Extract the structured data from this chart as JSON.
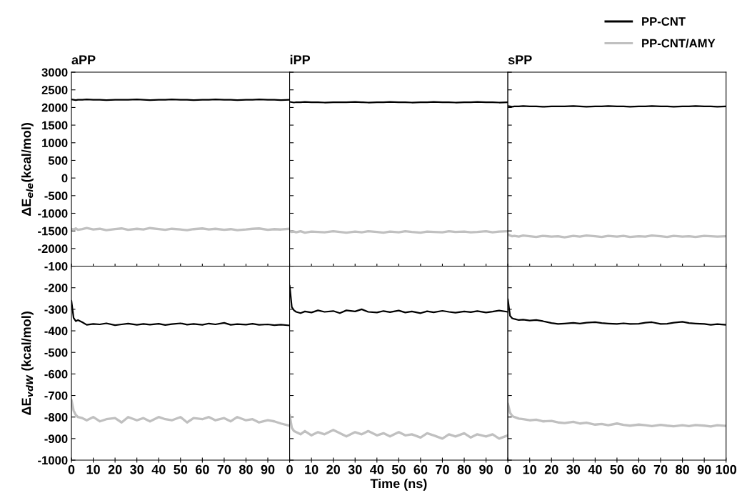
{
  "chart_data": [
    {
      "type": "line",
      "title": "aPP",
      "ylabel": "ΔE$_{ele}$(kcal/mol)",
      "tick_labels": "y",
      "xlim": [
        0,
        100
      ],
      "xticks": [
        0,
        10,
        20,
        30,
        40,
        50,
        60,
        70,
        80,
        90
      ],
      "ylim": [
        -2500,
        3000
      ],
      "yticks": [
        -2000,
        -1500,
        -1000,
        -500,
        0,
        500,
        1000,
        1500,
        2000,
        2500,
        3000
      ],
      "x": [
        0,
        1,
        2,
        3,
        5,
        7,
        10,
        13,
        16,
        20,
        23,
        26,
        30,
        33,
        36,
        40,
        43,
        46,
        50,
        53,
        56,
        60,
        63,
        66,
        70,
        73,
        76,
        80,
        83,
        86,
        90,
        93,
        96,
        100
      ],
      "series": [
        {
          "color": "#000000",
          "values": [
            2230,
            2220,
            2210,
            2220,
            2220,
            2230,
            2220,
            2220,
            2210,
            2220,
            2220,
            2220,
            2230,
            2220,
            2210,
            2220,
            2220,
            2230,
            2220,
            2220,
            2210,
            2220,
            2220,
            2230,
            2220,
            2220,
            2210,
            2220,
            2220,
            2230,
            2220,
            2220,
            2210,
            2220
          ]
        },
        {
          "color": "#c0c0c0",
          "values": [
            -1440,
            -1460,
            -1430,
            -1470,
            -1450,
            -1420,
            -1460,
            -1440,
            -1480,
            -1450,
            -1430,
            -1470,
            -1440,
            -1460,
            -1420,
            -1450,
            -1470,
            -1440,
            -1460,
            -1480,
            -1450,
            -1430,
            -1460,
            -1440,
            -1470,
            -1450,
            -1480,
            -1460,
            -1440,
            -1430,
            -1470,
            -1450,
            -1460,
            -1440
          ]
        }
      ]
    },
    {
      "type": "line",
      "title": "iPP",
      "tick_labels": false,
      "xlim": [
        0,
        100
      ],
      "xticks": [
        0,
        10,
        20,
        30,
        40,
        50,
        60,
        70,
        80,
        90
      ],
      "ylim": [
        -2500,
        3000
      ],
      "yticks": [
        -2000,
        -1500,
        -1000,
        -500,
        0,
        500,
        1000,
        1500,
        2000,
        2500,
        3000
      ],
      "x": [
        0,
        1,
        2,
        3,
        5,
        7,
        10,
        13,
        16,
        20,
        23,
        26,
        30,
        33,
        36,
        40,
        43,
        46,
        50,
        53,
        56,
        60,
        63,
        66,
        70,
        73,
        76,
        80,
        83,
        86,
        90,
        93,
        96,
        100
      ],
      "series": [
        {
          "color": "#000000",
          "values": [
            2160,
            2150,
            2140,
            2150,
            2150,
            2160,
            2150,
            2150,
            2140,
            2150,
            2150,
            2150,
            2160,
            2150,
            2140,
            2150,
            2150,
            2160,
            2150,
            2150,
            2140,
            2150,
            2150,
            2160,
            2150,
            2150,
            2140,
            2150,
            2150,
            2160,
            2150,
            2150,
            2140,
            2150
          ]
        },
        {
          "color": "#c0c0c0",
          "values": [
            -1500,
            -1530,
            -1520,
            -1540,
            -1510,
            -1550,
            -1520,
            -1530,
            -1540,
            -1510,
            -1530,
            -1550,
            -1520,
            -1540,
            -1510,
            -1530,
            -1550,
            -1520,
            -1540,
            -1510,
            -1530,
            -1550,
            -1520,
            -1530,
            -1540,
            -1510,
            -1530,
            -1520,
            -1540,
            -1530,
            -1510,
            -1540,
            -1520,
            -1510
          ]
        }
      ]
    },
    {
      "type": "line",
      "title": "sPP",
      "tick_labels": false,
      "legend": "top right",
      "xlim": [
        0,
        100
      ],
      "xticks": [
        0,
        10,
        20,
        30,
        40,
        50,
        60,
        70,
        80,
        90,
        100
      ],
      "ylim": [
        -2500,
        3000
      ],
      "yticks": [
        -2000,
        -1500,
        -1000,
        -500,
        0,
        500,
        1000,
        1500,
        2000,
        2500,
        3000
      ],
      "x": [
        0,
        1,
        2,
        3,
        5,
        7,
        10,
        13,
        16,
        20,
        23,
        26,
        30,
        33,
        36,
        40,
        43,
        46,
        50,
        53,
        56,
        60,
        63,
        66,
        70,
        73,
        76,
        80,
        83,
        86,
        90,
        93,
        96,
        100
      ],
      "series": [
        {
          "name": "PP-CNT",
          "color": "#000000",
          "values": [
            2040,
            2030,
            2020,
            2030,
            2030,
            2040,
            2030,
            2030,
            2020,
            2030,
            2030,
            2030,
            2040,
            2030,
            2020,
            2030,
            2030,
            2040,
            2030,
            2030,
            2020,
            2030,
            2030,
            2040,
            2030,
            2030,
            2020,
            2030,
            2030,
            2040,
            2030,
            2030,
            2020,
            2030
          ]
        },
        {
          "name": "PP-CNT/AMY",
          "color": "#c0c0c0",
          "values": [
            -1600,
            -1630,
            -1650,
            -1640,
            -1660,
            -1630,
            -1650,
            -1670,
            -1640,
            -1660,
            -1650,
            -1680,
            -1640,
            -1660,
            -1630,
            -1650,
            -1670,
            -1640,
            -1660,
            -1640,
            -1670,
            -1650,
            -1660,
            -1630,
            -1650,
            -1670,
            -1640,
            -1660,
            -1650,
            -1670,
            -1640,
            -1650,
            -1660,
            -1650
          ]
        }
      ]
    },
    {
      "type": "line",
      "ylabel": "ΔE$_{vdW}$ (kcal/mol)",
      "xlim": [
        0,
        100
      ],
      "xticks": [
        0,
        10,
        20,
        30,
        40,
        50,
        60,
        70,
        80,
        90
      ],
      "ylim": [
        -1000,
        -100
      ],
      "yticks": [
        -1000,
        -900,
        -800,
        -700,
        -600,
        -500,
        -400,
        -300,
        -200,
        -100
      ],
      "x": [
        0,
        1,
        2,
        3,
        5,
        7,
        10,
        13,
        16,
        20,
        23,
        26,
        30,
        33,
        36,
        40,
        43,
        46,
        50,
        53,
        56,
        60,
        63,
        66,
        70,
        73,
        76,
        80,
        83,
        86,
        90,
        93,
        96,
        100
      ],
      "series": [
        {
          "color": "#000000",
          "values": [
            -260,
            -340,
            -355,
            -350,
            -360,
            -372,
            -368,
            -370,
            -365,
            -374,
            -370,
            -366,
            -372,
            -368,
            -371,
            -367,
            -373,
            -369,
            -365,
            -371,
            -368,
            -372,
            -366,
            -370,
            -363,
            -372,
            -369,
            -371,
            -367,
            -372,
            -370,
            -374,
            -371,
            -375
          ]
        },
        {
          "color": "#c0c0c0",
          "values": [
            -720,
            -770,
            -790,
            -800,
            -805,
            -815,
            -800,
            -820,
            -810,
            -805,
            -825,
            -800,
            -815,
            -805,
            -820,
            -800,
            -810,
            -815,
            -800,
            -825,
            -805,
            -810,
            -800,
            -815,
            -805,
            -820,
            -800,
            -815,
            -810,
            -825,
            -815,
            -820,
            -830,
            -840
          ]
        }
      ]
    },
    {
      "type": "line",
      "xlabel": "Time (ns)",
      "tick_labels": "x",
      "xlim": [
        0,
        100
      ],
      "xticks": [
        0,
        10,
        20,
        30,
        40,
        50,
        60,
        70,
        80,
        90
      ],
      "ylim": [
        -1000,
        -100
      ],
      "yticks": [
        -1000,
        -900,
        -800,
        -700,
        -600,
        -500,
        -400,
        -300,
        -200,
        -100
      ],
      "x": [
        0,
        1,
        2,
        3,
        5,
        7,
        10,
        13,
        16,
        20,
        23,
        26,
        30,
        33,
        36,
        40,
        43,
        46,
        50,
        53,
        56,
        60,
        63,
        66,
        70,
        73,
        76,
        80,
        83,
        86,
        90,
        93,
        96,
        100
      ],
      "series": [
        {
          "color": "#000000",
          "values": [
            -190,
            -290,
            -305,
            -312,
            -318,
            -310,
            -315,
            -305,
            -312,
            -308,
            -318,
            -305,
            -310,
            -300,
            -312,
            -315,
            -308,
            -313,
            -306,
            -315,
            -310,
            -318,
            -309,
            -314,
            -307,
            -312,
            -316,
            -310,
            -313,
            -308,
            -315,
            -311,
            -306,
            -312
          ]
        },
        {
          "color": "#c0c0c0",
          "values": [
            -790,
            -850,
            -865,
            -870,
            -880,
            -865,
            -885,
            -870,
            -880,
            -860,
            -875,
            -890,
            -870,
            -880,
            -865,
            -885,
            -875,
            -890,
            -870,
            -885,
            -880,
            -895,
            -875,
            -885,
            -900,
            -880,
            -890,
            -875,
            -895,
            -880,
            -890,
            -880,
            -900,
            -885
          ]
        }
      ]
    },
    {
      "type": "line",
      "tick_labels": "x",
      "xlim": [
        0,
        100
      ],
      "xticks": [
        0,
        10,
        20,
        30,
        40,
        50,
        60,
        70,
        80,
        90,
        100
      ],
      "ylim": [
        -1000,
        -100
      ],
      "yticks": [
        -1000,
        -900,
        -800,
        -700,
        -600,
        -500,
        -400,
        -300,
        -200,
        -100
      ],
      "x": [
        0,
        1,
        2,
        3,
        5,
        7,
        10,
        13,
        16,
        20,
        23,
        26,
        30,
        33,
        36,
        40,
        43,
        46,
        50,
        53,
        56,
        60,
        63,
        66,
        70,
        73,
        76,
        80,
        83,
        86,
        90,
        93,
        96,
        100
      ],
      "series": [
        {
          "color": "#000000",
          "values": [
            -253,
            -330,
            -342,
            -345,
            -350,
            -348,
            -352,
            -350,
            -355,
            -364,
            -368,
            -366,
            -363,
            -366,
            -362,
            -360,
            -364,
            -366,
            -368,
            -365,
            -368,
            -367,
            -362,
            -360,
            -368,
            -367,
            -362,
            -358,
            -364,
            -366,
            -368,
            -372,
            -369,
            -372
          ]
        },
        {
          "color": "#c0c0c0",
          "values": [
            -738,
            -780,
            -795,
            -800,
            -807,
            -810,
            -815,
            -812,
            -820,
            -818,
            -825,
            -828,
            -822,
            -830,
            -826,
            -835,
            -832,
            -838,
            -830,
            -836,
            -840,
            -835,
            -838,
            -842,
            -836,
            -840,
            -843,
            -838,
            -842,
            -837,
            -840,
            -844,
            -838,
            -841
          ]
        }
      ]
    }
  ]
}
